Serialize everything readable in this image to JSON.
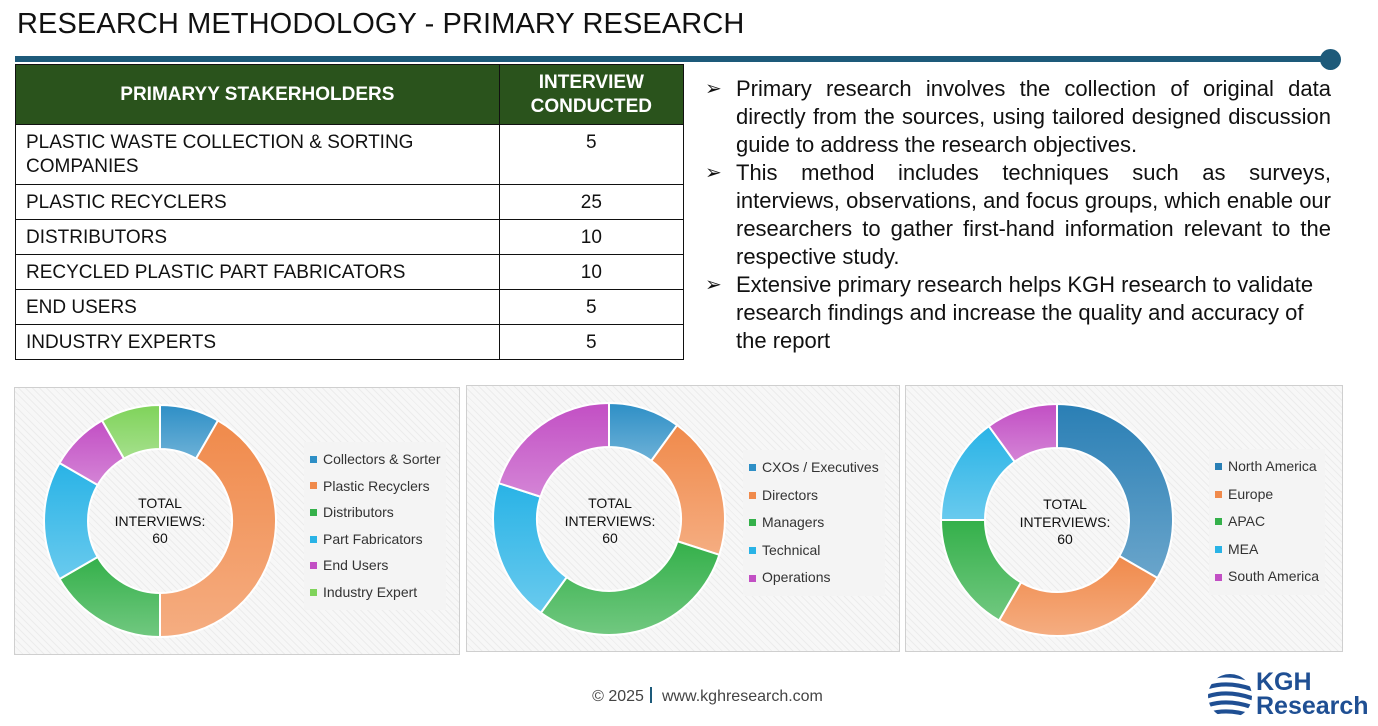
{
  "header": {
    "title": "RESEARCH METHODOLOGY - PRIMARY RESEARCH"
  },
  "table": {
    "headers": [
      "PRIMARYY STAKERHOLDERS",
      "INTERVIEW CONDUCTED"
    ],
    "rows": [
      {
        "stakeholder": "PLASTIC WASTE COLLECTION & SORTING COMPANIES",
        "interviews": "5"
      },
      {
        "stakeholder": "PLASTIC RECYCLERS",
        "interviews": "25"
      },
      {
        "stakeholder": "DISTRIBUTORS",
        "interviews": "10"
      },
      {
        "stakeholder": "RECYCLED PLASTIC PART FABRICATORS",
        "interviews": "10"
      },
      {
        "stakeholder": "END USERS",
        "interviews": "5"
      },
      {
        "stakeholder": "INDUSTRY EXPERTS",
        "interviews": "5"
      }
    ]
  },
  "bullets": [
    "Primary research involves the collection of original data directly from the sources, using tailored designed discussion guide to address the research objectives.",
    "This method includes techniques such as surveys, interviews, observations, and focus groups, which enable our researchers to gather first-hand information relevant to the respective study.",
    "Extensive primary research helps KGH research to validate research findings and increase the quality and accuracy of the report"
  ],
  "chart_data": [
    {
      "type": "donut",
      "center_label": [
        "TOTAL",
        "INTERVIEWS:",
        "60"
      ],
      "categories": [
        "Collectors & Sorter",
        "Plastic Recyclers",
        "Distributors",
        "Part Fabricators",
        "End Users",
        "Industry Expert"
      ],
      "values": [
        5,
        25,
        10,
        10,
        5,
        5
      ],
      "colors": [
        "#2e8fc6",
        "#f08a4b",
        "#34b04a",
        "#29b3e6",
        "#c24fc4",
        "#7fd35a"
      ],
      "legend": "right"
    },
    {
      "type": "donut",
      "center_label": [
        "TOTAL",
        "INTERVIEWS:",
        "60"
      ],
      "categories": [
        "CXOs / Executives",
        "Directors",
        "Managers",
        "Technical",
        "Operations"
      ],
      "values": [
        6,
        12,
        18,
        12,
        12
      ],
      "colors": [
        "#2e8fc6",
        "#f08a4b",
        "#34b04a",
        "#29b3e6",
        "#c24fc4"
      ],
      "legend": "right"
    },
    {
      "type": "donut",
      "center_label": [
        "TOTAL",
        "INTERVIEWS:",
        "60"
      ],
      "categories": [
        "North America",
        "Europe",
        "APAC",
        "MEA",
        "South America"
      ],
      "values": [
        20,
        15,
        10,
        9,
        6
      ],
      "colors": [
        "#2a7fb5",
        "#f08a4b",
        "#34b04a",
        "#29b3e6",
        "#c24fc4"
      ],
      "legend": "right"
    }
  ],
  "footer": {
    "copyright": "© 2025",
    "url": "www.kghresearch.com"
  },
  "logo": {
    "line1": "KGH",
    "line2": "Research"
  }
}
